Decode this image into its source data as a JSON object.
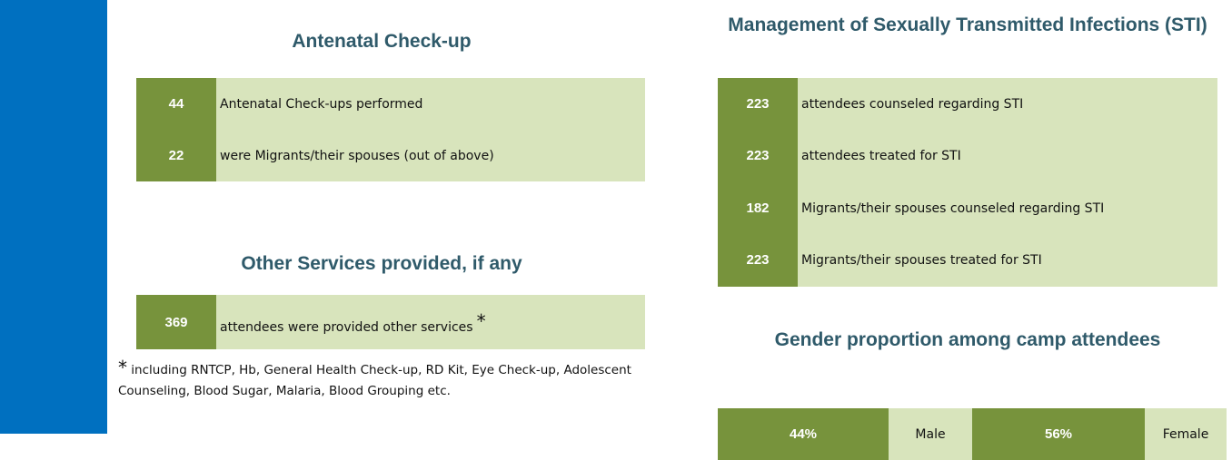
{
  "antenatal": {
    "title": "Antenatal Check-up",
    "rows": [
      {
        "number": "44",
        "text": "Antenatal Check-ups performed"
      },
      {
        "number": "22",
        "text": "were Migrants/their spouses (out of above)"
      }
    ]
  },
  "other_services": {
    "title": "Other Services provided, if any",
    "rows": [
      {
        "number": "369",
        "text": "attendees were provided other services",
        "marker": "*"
      }
    ],
    "note_marker": "*",
    "note": "including RNTCP, Hb, General Health Check-up, RD Kit, Eye Check-up, Adolescent Counseling, Blood Sugar, Malaria, Blood Grouping etc."
  },
  "sti": {
    "title": "Management of Sexually Transmitted Infections (STI)",
    "rows": [
      {
        "number": "223",
        "text": "attendees counseled regarding STI"
      },
      {
        "number": "223",
        "text": "attendees treated for STI"
      },
      {
        "number": "182",
        "text": "Migrants/their spouses counseled regarding STI"
      },
      {
        "number": "223",
        "text": "Migrants/their spouses treated for STI"
      }
    ]
  },
  "gender": {
    "title": "Gender proportion among camp attendees",
    "items": [
      {
        "percent": "44%",
        "label": "Male"
      },
      {
        "percent": "56%",
        "label": "Female"
      }
    ]
  }
}
